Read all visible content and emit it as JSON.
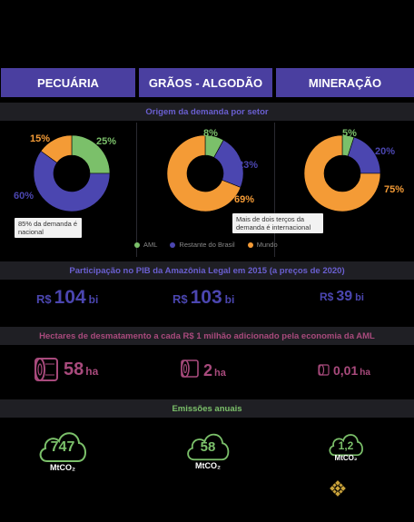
{
  "headers": [
    "PECUÁRIA",
    "GRÃOS - ALGODÃO",
    "MINERAÇÃO"
  ],
  "sections": {
    "origem": "Origem da demanda por setor",
    "pib": "Participação no PIB da Amazônia Legal em 2015 (a preços de 2020)",
    "hectares": "Hectares de desmatamento a cada R$ 1 milhão adicionado pela economia da AML",
    "emissoes": "Emissões anuais"
  },
  "callouts": {
    "pecuaria": "85% da demanda é nacional",
    "graos": "Mais de dois terços da demanda é internacional"
  },
  "colors": {
    "aml": "#7bc06a",
    "brasil": "#4b46b0",
    "mundo": "#f49b36",
    "pink": "#a84a7c",
    "band": "#1f1f24",
    "header": "#4a3fa0"
  },
  "chart_data": [
    {
      "type": "pie",
      "title": "PECUÁRIA",
      "categories": [
        "AML",
        "Restante do Brasil",
        "Mundo"
      ],
      "values": [
        25,
        60,
        15
      ],
      "labels": [
        "25%",
        "60%",
        "15%"
      ]
    },
    {
      "type": "pie",
      "title": "GRÃOS - ALGODÃO",
      "categories": [
        "AML",
        "Restante do Brasil",
        "Mundo"
      ],
      "values": [
        8,
        23,
        69
      ],
      "labels": [
        "8%",
        "23%",
        "69%"
      ]
    },
    {
      "type": "pie",
      "title": "MINERAÇÃO",
      "categories": [
        "AML",
        "Restante do Brasil",
        "Mundo"
      ],
      "values": [
        5,
        20,
        75
      ],
      "labels": [
        "5%",
        "20%",
        "75%"
      ]
    }
  ],
  "legend": [
    "AML",
    "Restante do Brasil",
    "Mundo"
  ],
  "pib": {
    "currency": "R$",
    "unit": "bi",
    "values": [
      "104",
      "103",
      "39"
    ]
  },
  "hectares": {
    "unit": "ha",
    "values": [
      "58",
      "2",
      "0,01"
    ]
  },
  "emissoes": {
    "unit": "MtCO₂",
    "values": [
      "747",
      "58",
      "1,2"
    ]
  }
}
